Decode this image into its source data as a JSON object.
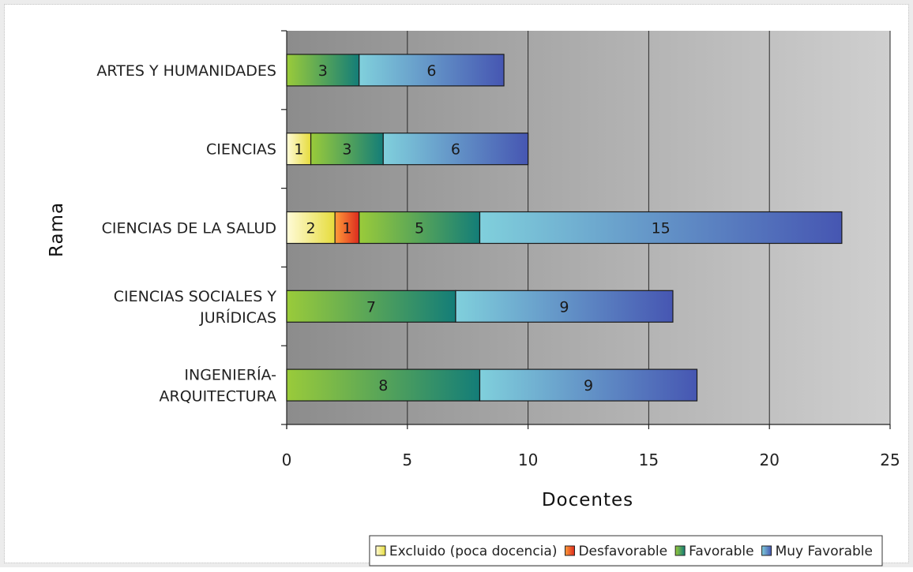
{
  "chart_data": {
    "type": "bar",
    "orientation": "horizontal",
    "stacked": true,
    "xlabel": "Docentes",
    "ylabel": "Rama",
    "xlim": [
      0,
      25
    ],
    "xticks": [
      "0",
      "5",
      "10",
      "15",
      "20",
      "25"
    ],
    "grid": true,
    "legend_position": "bottom-right",
    "categories": [
      [
        "ARTES Y HUMANIDADES"
      ],
      [
        "CIENCIAS"
      ],
      [
        "CIENCIAS DE LA SALUD"
      ],
      [
        "CIENCIAS SOCIALES Y",
        "JURÍDICAS"
      ],
      [
        "INGENIERÍA-",
        "ARQUITECTURA"
      ]
    ],
    "series": [
      {
        "name": "Excluido (poca docencia)",
        "values": [
          0,
          1,
          2,
          0,
          0
        ],
        "color_start": "#fffbd8",
        "color_end": "#e6dc3c"
      },
      {
        "name": "Desfavorable",
        "values": [
          0,
          0,
          1,
          0,
          0
        ],
        "color_start": "#ff9c3a",
        "color_end": "#dc2b1e"
      },
      {
        "name": "Favorable",
        "values": [
          3,
          3,
          5,
          7,
          8
        ],
        "color_start": "#9acb3a",
        "color_end": "#137d78"
      },
      {
        "name": "Muy Favorable",
        "values": [
          6,
          6,
          15,
          9,
          9
        ],
        "color_start": "#80d0dc",
        "color_end": "#4656b2"
      }
    ]
  }
}
